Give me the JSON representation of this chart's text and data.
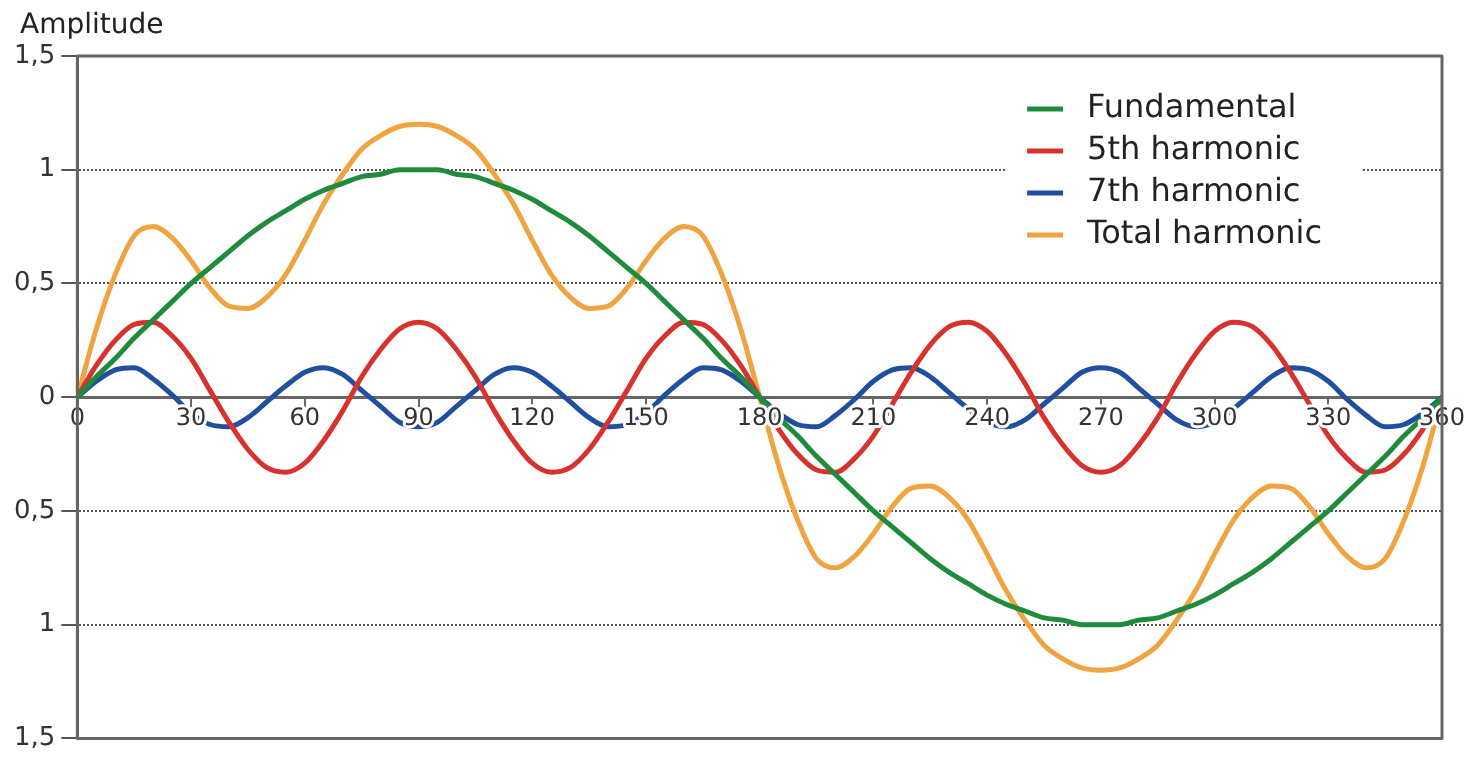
{
  "chart_data": {
    "type": "line",
    "ylabel": "Amplitude",
    "x": [
      0,
      5,
      10,
      15,
      20,
      25,
      30,
      35,
      40,
      45,
      50,
      55,
      60,
      65,
      70,
      75,
      80,
      85,
      90,
      95,
      100,
      105,
      110,
      115,
      120,
      125,
      130,
      135,
      140,
      145,
      150,
      155,
      160,
      165,
      170,
      175,
      180,
      185,
      190,
      195,
      200,
      205,
      210,
      215,
      220,
      225,
      230,
      235,
      240,
      245,
      250,
      255,
      260,
      265,
      270,
      275,
      280,
      285,
      290,
      295,
      300,
      305,
      310,
      315,
      320,
      325,
      330,
      335,
      340,
      345,
      350,
      355,
      360
    ],
    "series": [
      {
        "name": "Fundamental",
        "color": "#1e8c3c",
        "values": [
          0,
          0.09,
          0.17,
          0.26,
          0.34,
          0.42,
          0.5,
          0.57,
          0.64,
          0.71,
          0.77,
          0.82,
          0.87,
          0.91,
          0.94,
          0.97,
          0.98,
          1,
          1,
          1,
          0.98,
          0.97,
          0.94,
          0.91,
          0.87,
          0.82,
          0.77,
          0.71,
          0.64,
          0.57,
          0.5,
          0.42,
          0.34,
          0.26,
          0.17,
          0.09,
          0,
          -0.09,
          -0.17,
          -0.26,
          -0.34,
          -0.42,
          -0.5,
          -0.57,
          -0.64,
          -0.71,
          -0.77,
          -0.82,
          -0.87,
          -0.91,
          -0.94,
          -0.97,
          -0.98,
          -1,
          -1,
          -1,
          -0.98,
          -0.97,
          -0.94,
          -0.91,
          -0.87,
          -0.82,
          -0.77,
          -0.71,
          -0.64,
          -0.57,
          -0.5,
          -0.42,
          -0.34,
          -0.26,
          -0.17,
          -0.09,
          0
        ]
      },
      {
        "name": "5th harmonic",
        "color": "#d8322e",
        "values": [
          0,
          0.14,
          0.25,
          0.32,
          0.33,
          0.27,
          0.17,
          0.03,
          -0.11,
          -0.23,
          -0.31,
          -0.33,
          -0.29,
          -0.19,
          -0.06,
          0.09,
          0.21,
          0.3,
          0.33,
          0.3,
          0.21,
          0.09,
          -0.06,
          -0.19,
          -0.29,
          -0.33,
          -0.31,
          -0.23,
          -0.11,
          0.03,
          0.17,
          0.27,
          0.33,
          0.32,
          0.25,
          0.14,
          0,
          -0.14,
          -0.25,
          -0.32,
          -0.33,
          -0.27,
          -0.17,
          -0.03,
          0.11,
          0.23,
          0.31,
          0.33,
          0.29,
          0.19,
          0.06,
          -0.09,
          -0.21,
          -0.3,
          -0.33,
          -0.3,
          -0.21,
          -0.09,
          0.06,
          0.19,
          0.29,
          0.33,
          0.31,
          0.23,
          0.11,
          -0.03,
          -0.17,
          -0.27,
          -0.33,
          -0.32,
          -0.25,
          -0.14,
          0
        ]
      },
      {
        "name": "7th harmonic",
        "color": "#1f4f9e",
        "values": [
          0,
          0.07,
          0.12,
          0.13,
          0.08,
          0.01,
          -0.07,
          -0.12,
          -0.13,
          -0.09,
          -0.02,
          0.05,
          0.11,
          0.13,
          0.1,
          0.03,
          -0.04,
          -0.11,
          -0.13,
          -0.11,
          -0.04,
          0.03,
          0.1,
          0.13,
          0.11,
          0.05,
          -0.02,
          -0.09,
          -0.13,
          -0.12,
          -0.07,
          0.01,
          0.08,
          0.13,
          0.12,
          0.07,
          0,
          -0.07,
          -0.12,
          -0.13,
          -0.08,
          -0.01,
          0.07,
          0.12,
          0.13,
          0.09,
          0.02,
          -0.05,
          -0.11,
          -0.13,
          -0.1,
          -0.03,
          0.04,
          0.11,
          0.13,
          0.11,
          0.04,
          -0.03,
          -0.1,
          -0.13,
          -0.11,
          -0.05,
          0.02,
          0.09,
          0.13,
          0.12,
          0.07,
          -0.01,
          -0.08,
          -0.13,
          -0.12,
          -0.07,
          0
        ]
      },
      {
        "name": "Total harmonic",
        "color": "#f0a440",
        "values": [
          0,
          0.3,
          0.54,
          0.71,
          0.75,
          0.7,
          0.6,
          0.48,
          0.4,
          0.39,
          0.44,
          0.54,
          0.69,
          0.85,
          0.98,
          1.09,
          1.15,
          1.19,
          1.2,
          1.19,
          1.15,
          1.09,
          0.98,
          0.85,
          0.69,
          0.54,
          0.44,
          0.39,
          0.4,
          0.48,
          0.6,
          0.7,
          0.75,
          0.71,
          0.54,
          0.3,
          0,
          -0.3,
          -0.54,
          -0.71,
          -0.75,
          -0.7,
          -0.6,
          -0.48,
          -0.4,
          -0.39,
          -0.44,
          -0.54,
          -0.69,
          -0.85,
          -0.98,
          -1.09,
          -1.15,
          -1.19,
          -1.2,
          -1.19,
          -1.15,
          -1.09,
          -0.98,
          -0.85,
          -0.69,
          -0.54,
          -0.44,
          -0.39,
          -0.4,
          -0.48,
          -0.6,
          -0.7,
          -0.75,
          -0.71,
          -0.54,
          -0.3,
          0
        ]
      }
    ],
    "xlim": [
      0,
      360
    ],
    "xticks": [
      0,
      30,
      60,
      90,
      120,
      150,
      180,
      210,
      240,
      270,
      300,
      330,
      360
    ],
    "ylim": [
      -1.5,
      1.5
    ],
    "yticks": [
      {
        "value": -1.5,
        "label": "1,5"
      },
      {
        "value": -1,
        "label": "1"
      },
      {
        "value": -0.5,
        "label": "0,5"
      },
      0,
      {
        "value": 0.5,
        "label": "0,5"
      },
      1,
      {
        "value": 1.5,
        "label": "1,5"
      }
    ],
    "grid": "y",
    "legend": "top right",
    "marker": "none",
    "line_style": "solid"
  }
}
